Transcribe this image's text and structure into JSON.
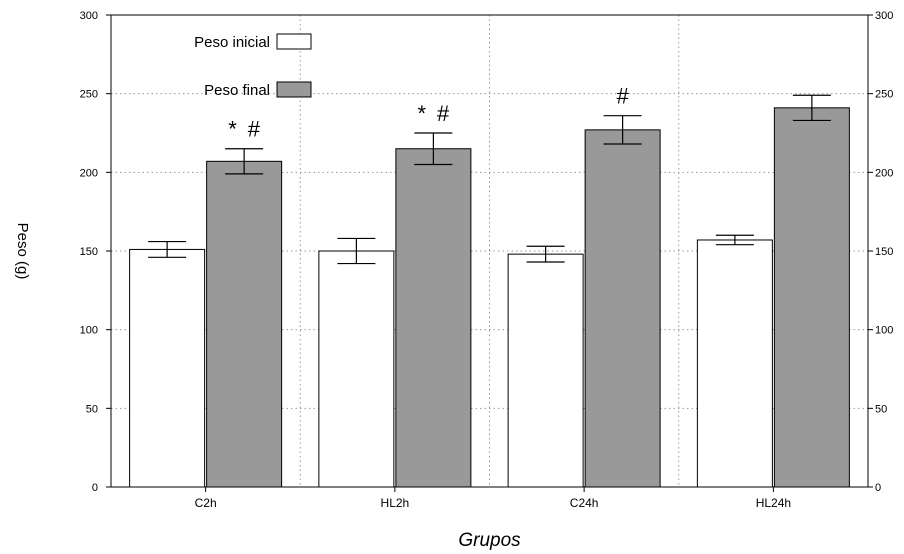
{
  "chart_data": {
    "type": "bar",
    "categories": [
      "C2h",
      "HL2h",
      "C24h",
      "HL24h"
    ],
    "series": [
      {
        "name": "Peso inicial",
        "values": [
          151,
          150,
          148,
          157
        ],
        "errors": [
          5,
          8,
          5,
          3
        ],
        "color": "#ffffff"
      },
      {
        "name": "Peso final",
        "values": [
          207,
          215,
          227,
          241
        ],
        "errors": [
          8,
          10,
          9,
          8
        ],
        "color": "#999999"
      }
    ],
    "annotations": [
      {
        "category": 0,
        "series": 1,
        "text": "* #"
      },
      {
        "category": 1,
        "series": 1,
        "text": "* #"
      },
      {
        "category": 2,
        "series": 1,
        "text": "#"
      }
    ],
    "xlabel": "Grupos",
    "ylabel": "Peso (g)",
    "ylim": [
      0,
      300
    ],
    "yticks": [
      0,
      50,
      100,
      150,
      200,
      250,
      300
    ],
    "grid": true,
    "legend_position": "top-left"
  }
}
